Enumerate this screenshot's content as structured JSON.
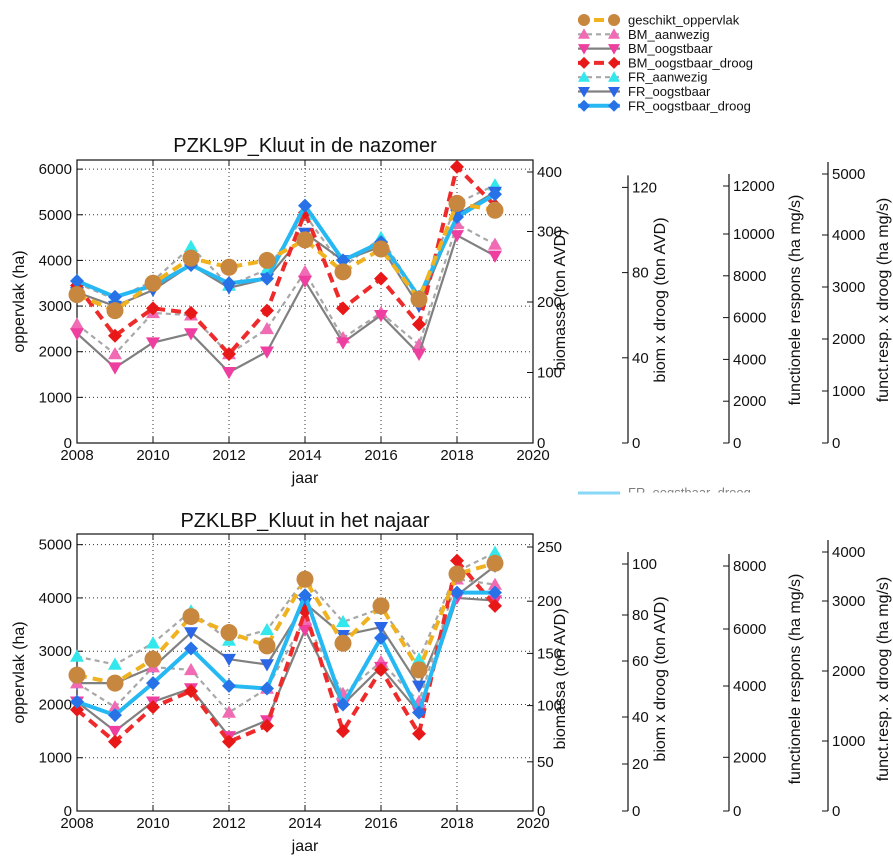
{
  "legend": {
    "entries": [
      {
        "label": "geschikt_oppervlak",
        "color": "#f0b21e",
        "marker": "circle",
        "marker_color": "#c8873f",
        "dash": "dashed-thick"
      },
      {
        "label": "BM_aanwezig",
        "color": "#a8a8a8",
        "marker": "triangle-up",
        "marker_color": "#f06bb4",
        "dash": "dashed"
      },
      {
        "label": "BM_oogstbaar",
        "color": "#808080",
        "marker": "triangle-down",
        "marker_color": "#ee3fa0",
        "dash": "solid"
      },
      {
        "label": "BM_oogstbaar_droog",
        "color": "#ee2a2a",
        "marker": "diamond",
        "marker_color": "#e81818",
        "dash": "dashed-thick"
      },
      {
        "label": "FR_aanwezig",
        "color": "#a8a8a8",
        "marker": "triangle-up",
        "marker_color": "#33e8ec",
        "dash": "dashed"
      },
      {
        "label": "FR_oogstbaar",
        "color": "#808080",
        "marker": "triangle-down",
        "marker_color": "#2a66e6",
        "dash": "solid"
      },
      {
        "label": "FR_oogstbaar_droog",
        "color": "#26b8f2",
        "marker": "diamond",
        "marker_color": "#2872e8",
        "dash": "solid-thick"
      }
    ],
    "ghost_text": "FR_oogstbaar_droog"
  },
  "chart_data": [
    {
      "type": "line",
      "title": "PZKL9P_Kluut in de nazomer",
      "xlabel": "jaar",
      "ylabel": "oppervlak (ha)",
      "x": [
        2008,
        2009,
        2010,
        2011,
        2012,
        2013,
        2014,
        2015,
        2016,
        2017,
        2018,
        2019
      ],
      "xlim": [
        2008,
        2020
      ],
      "xticks": [
        "2008",
        "2010",
        "2012",
        "2014",
        "2016",
        "2018",
        "2020"
      ],
      "ylim": [
        0,
        6200
      ],
      "yticks": [
        "0",
        "1000",
        "2000",
        "3000",
        "4000",
        "5000",
        "6000"
      ],
      "grid": true,
      "extra_axes": [
        {
          "label": "biomassa (ton AVD)",
          "ticks": [
            "0",
            "100",
            "200",
            "300",
            "400"
          ]
        },
        {
          "label": "biom x droog (ton AVD)",
          "ticks": [
            "0",
            "40",
            "80",
            "120"
          ]
        },
        {
          "label": "functionele respons (ha mg/s)",
          "ticks": [
            "0",
            "2000",
            "4000",
            "6000",
            "8000",
            "10000",
            "12000"
          ]
        },
        {
          "label": "funct.resp. x droog (ha mg/s)",
          "ticks": [
            "0",
            "1000",
            "2000",
            "3000",
            "4000",
            "5000"
          ]
        }
      ],
      "series": [
        {
          "name": "geschikt_oppervlak",
          "values": [
            3250,
            2900,
            3500,
            4050,
            3850,
            4000,
            4450,
            3750,
            4250,
            3150,
            5250,
            5100
          ]
        },
        {
          "name": "BM_aanwezig",
          "values": [
            2600,
            1950,
            2850,
            2800,
            1950,
            2500,
            3750,
            2300,
            2850,
            2150,
            4800,
            4350
          ]
        },
        {
          "name": "BM_oogstbaar",
          "values": [
            2400,
            1650,
            2200,
            2400,
            1550,
            2000,
            3550,
            2200,
            2800,
            1950,
            4550,
            4100
          ]
        },
        {
          "name": "BM_oogstbaar_droog",
          "values": [
            3450,
            2350,
            2950,
            2850,
            1950,
            2900,
            5050,
            2950,
            3600,
            2600,
            6050,
            5200
          ]
        },
        {
          "name": "FR_aanwezig",
          "values": [
            3500,
            3150,
            3550,
            4300,
            3450,
            3800,
            5000,
            3850,
            4500,
            3200,
            5250,
            5650
          ]
        },
        {
          "name": "FR_oogstbaar",
          "values": [
            3300,
            3000,
            3350,
            3900,
            3400,
            3600,
            4600,
            4000,
            4300,
            3000,
            5000,
            5500
          ]
        },
        {
          "name": "FR_oogstbaar_droog",
          "values": [
            3550,
            3200,
            3450,
            3900,
            3500,
            3600,
            5200,
            4000,
            4400,
            3200,
            4950,
            5450
          ]
        }
      ]
    },
    {
      "type": "line",
      "title": "PZKLBP_Kluut in het najaar",
      "xlabel": "jaar",
      "ylabel": "oppervlak (ha)",
      "x": [
        2008,
        2009,
        2010,
        2011,
        2012,
        2013,
        2014,
        2015,
        2016,
        2017,
        2018,
        2019
      ],
      "xlim": [
        2008,
        2020
      ],
      "xticks": [
        "2008",
        "2010",
        "2012",
        "2014",
        "2016",
        "2018",
        "2020"
      ],
      "ylim": [
        0,
        5200
      ],
      "yticks": [
        "0",
        "1000",
        "2000",
        "3000",
        "4000",
        "5000"
      ],
      "grid": true,
      "extra_axes": [
        {
          "label": "biomassa (ton AVD)",
          "ticks": [
            "0",
            "50",
            "100",
            "150",
            "200",
            "250"
          ]
        },
        {
          "label": "biom x droog (ton AVD)",
          "ticks": [
            "0",
            "20",
            "40",
            "60",
            "80",
            "100"
          ]
        },
        {
          "label": "functionele respons (ha mg/s)",
          "ticks": [
            "0",
            "2000",
            "4000",
            "6000",
            "8000"
          ]
        },
        {
          "label": "funct.resp. x droog (ha mg/s)",
          "ticks": [
            "0",
            "1000",
            "2000",
            "3000",
            "4000"
          ]
        }
      ],
      "series": [
        {
          "name": "geschikt_oppervlak",
          "values": [
            2550,
            2400,
            2850,
            3650,
            3350,
            3100,
            4350,
            3150,
            3850,
            2650,
            4450,
            4650
          ]
        },
        {
          "name": "BM_aanwezig",
          "values": [
            2400,
            1950,
            2700,
            2650,
            1850,
            2300,
            3600,
            2200,
            2800,
            2050,
            4350,
            4250
          ]
        },
        {
          "name": "BM_oogstbaar",
          "values": [
            2050,
            1500,
            2050,
            2300,
            1400,
            1700,
            3400,
            2000,
            2700,
            1850,
            4000,
            3950
          ]
        },
        {
          "name": "BM_oogstbaar_droog",
          "values": [
            1900,
            1300,
            1950,
            2250,
            1300,
            1600,
            3750,
            1500,
            2650,
            1450,
            4700,
            3850
          ]
        },
        {
          "name": "FR_aanwezig",
          "values": [
            2900,
            2750,
            3150,
            3750,
            3200,
            3400,
            4350,
            3550,
            3800,
            2850,
            4500,
            4850
          ]
        },
        {
          "name": "FR_oogstbaar",
          "values": [
            2400,
            2400,
            2700,
            3350,
            2850,
            2750,
            3900,
            3300,
            3450,
            2350,
            4050,
            4600
          ]
        },
        {
          "name": "FR_oogstbaar_droog",
          "values": [
            2050,
            1800,
            2400,
            3050,
            2350,
            2300,
            4050,
            2000,
            3250,
            1850,
            4100,
            4100
          ]
        }
      ]
    }
  ]
}
